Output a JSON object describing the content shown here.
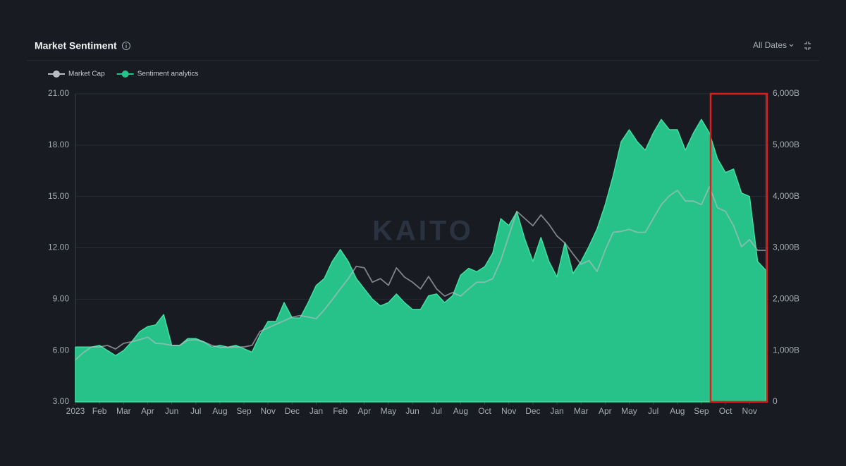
{
  "chart_data": {
    "type": "combo",
    "title": "Market Sentiment",
    "date_filter": "All Dates",
    "watermark": "KAITO",
    "categories": [
      "2023",
      null,
      null,
      "Feb",
      null,
      null,
      "Mar",
      null,
      null,
      "Apr",
      null,
      null,
      "Jun",
      null,
      null,
      "Jul",
      null,
      null,
      "Aug",
      null,
      null,
      "Sep",
      null,
      null,
      "Nov",
      null,
      null,
      "Dec",
      null,
      null,
      "Jan",
      null,
      null,
      "Feb",
      null,
      null,
      "Apr",
      null,
      null,
      "May",
      null,
      null,
      "Jun",
      null,
      null,
      "Jul",
      null,
      null,
      "Aug",
      null,
      null,
      "Oct",
      null,
      null,
      "Nov",
      null,
      null,
      "Dec",
      null,
      null,
      "Jan",
      null,
      null,
      "Mar",
      null,
      null,
      "Apr",
      null,
      null,
      "May",
      null,
      null,
      "Jul",
      null,
      null,
      "Aug",
      null,
      null,
      "Sep",
      null,
      null,
      "Oct",
      null,
      null,
      "Nov",
      null,
      null
    ],
    "series": [
      {
        "name": "Sentiment analytics",
        "type": "area",
        "color": "#27c28a",
        "axis": "y",
        "values": [
          6.2,
          6.2,
          6.2,
          6.3,
          6.0,
          5.7,
          6.0,
          6.5,
          7.1,
          7.4,
          7.5,
          8.1,
          6.3,
          6.3,
          6.7,
          6.7,
          6.5,
          6.2,
          6.3,
          6.2,
          6.3,
          6.1,
          5.9,
          6.9,
          7.7,
          7.7,
          8.8,
          7.9,
          7.9,
          8.8,
          9.8,
          10.2,
          11.2,
          11.9,
          11.2,
          10.2,
          9.6,
          9.0,
          8.6,
          8.8,
          9.3,
          8.8,
          8.4,
          8.4,
          9.2,
          9.3,
          8.8,
          9.2,
          10.4,
          10.8,
          10.6,
          10.9,
          11.7,
          13.7,
          13.3,
          14.1,
          12.5,
          11.2,
          12.6,
          11.2,
          10.3,
          12.3,
          10.5,
          11.2,
          12.1,
          13.1,
          14.5,
          16.2,
          18.2,
          18.9,
          18.2,
          17.7,
          18.7,
          19.5,
          18.9,
          18.9,
          17.7,
          18.7,
          19.5,
          18.7,
          17.2,
          16.4,
          16.6,
          15.2,
          15.0,
          11.2,
          10.7
        ]
      },
      {
        "name": "Market Cap",
        "type": "line",
        "color": "#b9bcc2",
        "axis": "y2",
        "values": [
          820,
          960,
          1070,
          1070,
          1100,
          1030,
          1140,
          1170,
          1210,
          1260,
          1140,
          1130,
          1100,
          1100,
          1200,
          1210,
          1170,
          1100,
          1060,
          1060,
          1070,
          1070,
          1100,
          1370,
          1440,
          1510,
          1580,
          1650,
          1680,
          1650,
          1620,
          1790,
          1990,
          2200,
          2400,
          2640,
          2610,
          2330,
          2400,
          2270,
          2610,
          2430,
          2330,
          2200,
          2440,
          2200,
          2060,
          2130,
          2060,
          2200,
          2330,
          2330,
          2400,
          2750,
          3230,
          3710,
          3570,
          3430,
          3640,
          3460,
          3230,
          3090,
          2880,
          2680,
          2750,
          2540,
          2950,
          3300,
          3320,
          3360,
          3300,
          3300,
          3570,
          3840,
          4010,
          4120,
          3910,
          3910,
          3840,
          4190,
          3780,
          3710,
          3430,
          3020,
          3160,
          2950,
          2950
        ]
      }
    ],
    "ylim": [
      3,
      21
    ],
    "yticks": [
      {
        "value": 3,
        "label": "3.00"
      },
      {
        "value": 6,
        "label": "6.00"
      },
      {
        "value": 9,
        "label": "9.00"
      },
      {
        "value": 12,
        "label": "12.00"
      },
      {
        "value": 15,
        "label": "15.00"
      },
      {
        "value": 18,
        "label": "18.00"
      },
      {
        "value": 21,
        "label": "21.00"
      }
    ],
    "y2lim": [
      0,
      6000
    ],
    "y2ticks": [
      0,
      {
        "value": 1000,
        "label": "1,000B"
      },
      {
        "value": 2000,
        "label": "2,000B"
      },
      {
        "value": 3000,
        "label": "3,000B"
      },
      {
        "value": 4000,
        "label": "4,000B"
      },
      {
        "value": 5000,
        "label": "5,000B"
      },
      {
        "value": 6000,
        "label": "6,000B"
      }
    ],
    "grid": true
  }
}
